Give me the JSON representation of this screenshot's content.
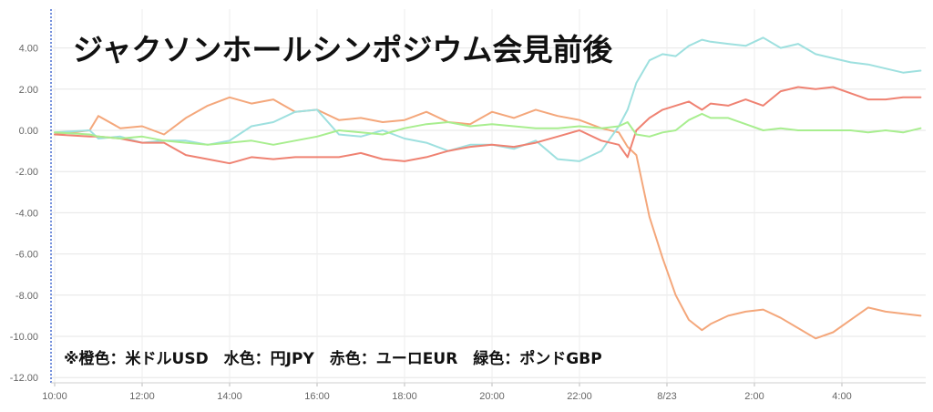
{
  "chart_data": {
    "type": "line",
    "title": "ジャクソンホールシンポジウム会見前後",
    "annotation": "※橙色：米ドルUSD　水色：円JPY　赤色：ユーロEUR　緑色：ポンドGBP",
    "xlabel": "",
    "ylabel": "",
    "x_ticks": [
      "10:00",
      "12:00",
      "14:00",
      "16:00",
      "18:00",
      "20:00",
      "22:00",
      "8/23",
      "2:00",
      "4:00"
    ],
    "y_ticks": [
      "4.00",
      "2.00",
      "0.00",
      "-2.00",
      "-4.00",
      "-6.00",
      "-8.00",
      "-10.00",
      "-12.00"
    ],
    "ylim": [
      -12,
      5.2
    ],
    "xlim": [
      0,
      19.8
    ],
    "grid": true,
    "series": [
      {
        "color_word": "橙色",
        "color": "#f4a77b",
        "x": [
          0,
          0.8,
          1,
          1.5,
          2,
          2.5,
          3,
          3.5,
          4,
          4.5,
          5,
          5.5,
          6,
          6.5,
          7,
          7.5,
          8,
          8.5,
          9,
          9.5,
          10,
          10.5,
          11,
          11.5,
          12,
          12.5,
          12.9,
          13.1,
          13.3,
          13.6,
          13.9,
          14.2,
          14.5,
          14.8,
          15,
          15.4,
          15.8,
          16.2,
          16.6,
          17,
          17.4,
          17.8,
          18.2,
          18.6,
          19,
          19.4,
          19.8
        ],
        "y": [
          -0.2,
          0,
          0.7,
          0.1,
          0.2,
          -0.2,
          0.6,
          1.2,
          1.6,
          1.3,
          1.5,
          0.9,
          1.0,
          0.5,
          0.6,
          0.4,
          0.5,
          0.9,
          0.4,
          0.3,
          0.9,
          0.6,
          1.0,
          0.7,
          0.5,
          0.1,
          -0.1,
          -0.8,
          -1.2,
          -4.2,
          -6.2,
          -8.0,
          -9.2,
          -9.7,
          -9.4,
          -9.0,
          -8.8,
          -8.7,
          -9.1,
          -9.6,
          -10.1,
          -9.8,
          -9.2,
          -8.6,
          -8.8,
          -8.9,
          -9.0
        ]
      },
      {
        "color_word": "水色",
        "color": "#9ee0df",
        "x": [
          0,
          0.8,
          1,
          1.5,
          2,
          2.5,
          3,
          3.5,
          4,
          4.5,
          5,
          5.5,
          6,
          6.5,
          7,
          7.5,
          8,
          8.5,
          9,
          9.5,
          10,
          10.5,
          11,
          11.5,
          12,
          12.5,
          12.9,
          13.1,
          13.3,
          13.6,
          13.9,
          14.2,
          14.5,
          14.8,
          15,
          15.4,
          15.8,
          16.2,
          16.6,
          17,
          17.4,
          17.8,
          18.2,
          18.6,
          19,
          19.4,
          19.8
        ],
        "y": [
          -0.1,
          0,
          -0.4,
          -0.3,
          -0.6,
          -0.5,
          -0.5,
          -0.7,
          -0.5,
          0.2,
          0.4,
          0.9,
          1.0,
          -0.2,
          -0.3,
          0,
          -0.4,
          -0.6,
          -1.0,
          -0.7,
          -0.7,
          -0.9,
          -0.5,
          -1.4,
          -1.5,
          -1.0,
          0.2,
          1.0,
          2.3,
          3.4,
          3.7,
          3.6,
          4.1,
          4.4,
          4.3,
          4.2,
          4.1,
          4.5,
          4.0,
          4.2,
          3.7,
          3.5,
          3.3,
          3.2,
          3.0,
          2.8,
          2.9
        ]
      },
      {
        "color_word": "赤色",
        "color": "#ef8272",
        "x": [
          0,
          0.8,
          1,
          1.5,
          2,
          2.5,
          3,
          3.5,
          4,
          4.5,
          5,
          5.5,
          6,
          6.5,
          7,
          7.5,
          8,
          8.5,
          9,
          9.5,
          10,
          10.5,
          11,
          11.5,
          12,
          12.5,
          12.9,
          13.1,
          13.3,
          13.6,
          13.9,
          14.2,
          14.5,
          14.8,
          15,
          15.4,
          15.8,
          16.2,
          16.6,
          17,
          17.4,
          17.8,
          18.2,
          18.6,
          19,
          19.4,
          19.8
        ],
        "y": [
          -0.2,
          -0.3,
          -0.3,
          -0.4,
          -0.6,
          -0.6,
          -1.2,
          -1.4,
          -1.6,
          -1.3,
          -1.4,
          -1.3,
          -1.3,
          -1.3,
          -1.1,
          -1.4,
          -1.5,
          -1.3,
          -1.0,
          -0.8,
          -0.7,
          -0.8,
          -0.6,
          -0.3,
          0,
          -0.5,
          -0.7,
          -1.3,
          0.0,
          0.6,
          1.0,
          1.2,
          1.4,
          1.0,
          1.3,
          1.2,
          1.5,
          1.2,
          1.9,
          2.1,
          2.0,
          2.1,
          1.8,
          1.5,
          1.5,
          1.6,
          1.6
        ]
      },
      {
        "color_word": "緑色",
        "color": "#a8ee8f",
        "x": [
          0,
          0.8,
          1,
          1.5,
          2,
          2.5,
          3,
          3.5,
          4,
          4.5,
          5,
          5.5,
          6,
          6.5,
          7,
          7.5,
          8,
          8.5,
          9,
          9.5,
          10,
          10.5,
          11,
          11.5,
          12,
          12.5,
          12.9,
          13.1,
          13.3,
          13.6,
          13.9,
          14.2,
          14.5,
          14.8,
          15,
          15.4,
          15.8,
          16.2,
          16.6,
          17,
          17.4,
          17.8,
          18.2,
          18.6,
          19,
          19.4,
          19.8
        ],
        "y": [
          -0.1,
          -0.2,
          -0.3,
          -0.4,
          -0.3,
          -0.5,
          -0.6,
          -0.7,
          -0.6,
          -0.5,
          -0.7,
          -0.5,
          -0.3,
          0,
          -0.1,
          -0.2,
          0.1,
          0.3,
          0.4,
          0.2,
          0.3,
          0.2,
          0.1,
          0.1,
          0.2,
          0.1,
          0.2,
          0.4,
          -0.2,
          -0.3,
          -0.1,
          0,
          0.5,
          0.8,
          0.6,
          0.6,
          0.3,
          0.0,
          0.1,
          0.0,
          0.0,
          0.0,
          0.0,
          -0.1,
          0.0,
          -0.1,
          0.1
        ]
      }
    ]
  }
}
